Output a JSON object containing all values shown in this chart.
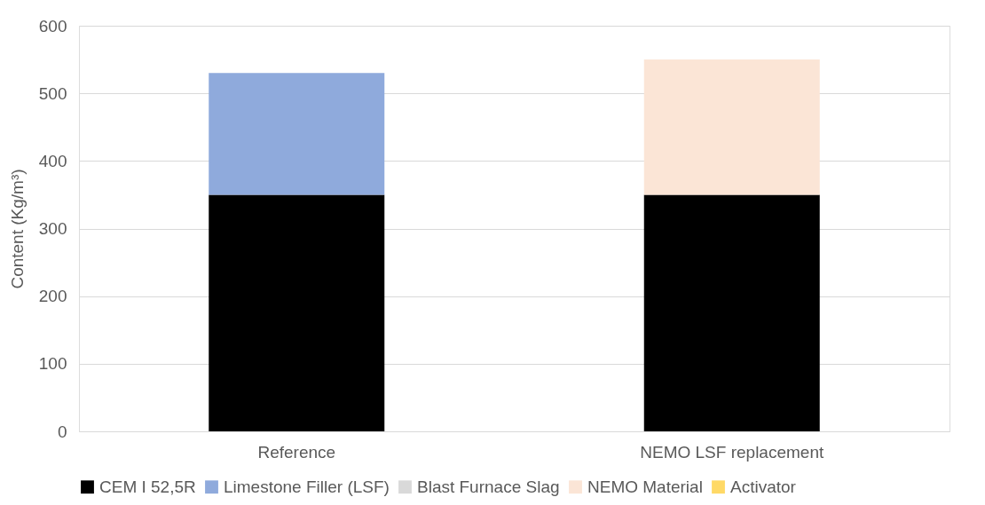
{
  "chart_data": {
    "type": "bar",
    "stacked": true,
    "ylabel": "Content (Kg/m³)",
    "categories": [
      "Reference",
      "NEMO LSF replacement"
    ],
    "series": [
      {
        "name": "CEM I 52,5R",
        "color": "#000000",
        "values": [
          350,
          350
        ]
      },
      {
        "name": "Limestone Filler (LSF)",
        "color": "#8faadc",
        "values": [
          180,
          0
        ]
      },
      {
        "name": "Blast Furnace Slag",
        "color": "#d9d9d9",
        "values": [
          0,
          0
        ]
      },
      {
        "name": "NEMO Material",
        "color": "#fbe5d6",
        "values": [
          0,
          200
        ]
      },
      {
        "name": "Activator",
        "color": "#ffd966",
        "values": [
          0,
          0
        ]
      }
    ],
    "ylim": [
      0,
      600
    ],
    "yticks": [
      0,
      100,
      200,
      300,
      400,
      500,
      600
    ],
    "grid": "y",
    "legend": "bottom"
  }
}
